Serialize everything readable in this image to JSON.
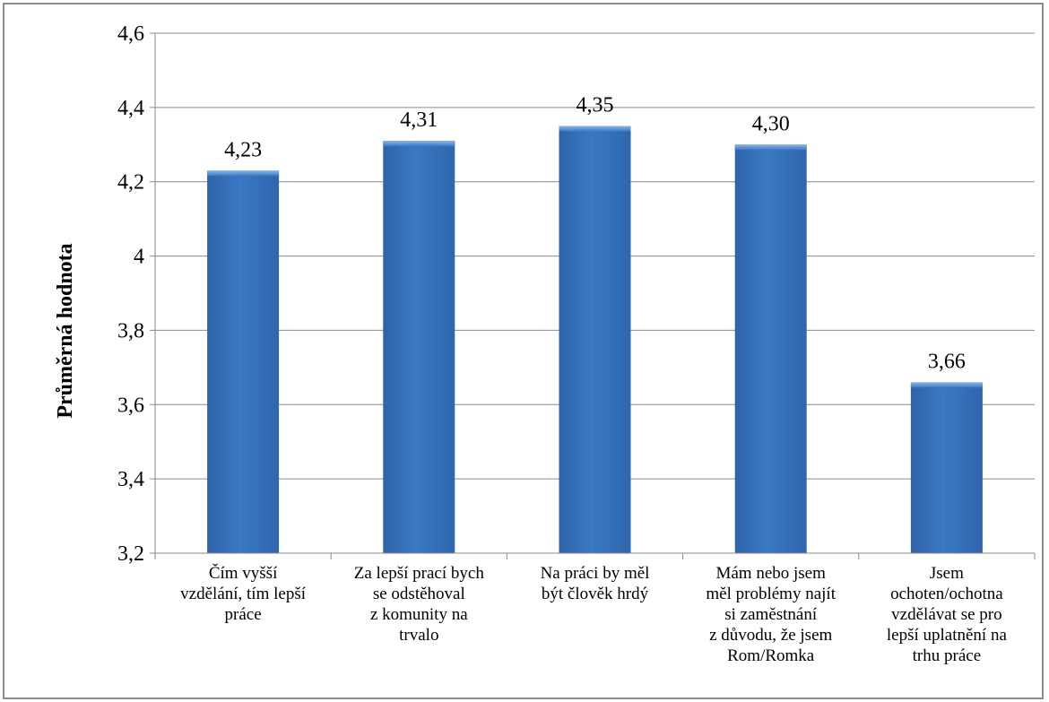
{
  "chart_data": {
    "type": "bar",
    "title": "",
    "xlabel": "",
    "ylabel": "Průměrná hodnota",
    "ylim": [
      3.2,
      4.6
    ],
    "yticks": [
      3.2,
      3.4,
      3.6,
      3.8,
      4,
      4.2,
      4.4,
      4.6
    ],
    "ytick_labels": [
      "3,2",
      "3,4",
      "3,6",
      "3,8",
      "4",
      "4,2",
      "4,4",
      "4,6"
    ],
    "grid": true,
    "legend": "none",
    "bar_color": "#3a78c4",
    "categories": [
      [
        "Čím vyšší",
        "vzdělání, tím lepší",
        "práce"
      ],
      [
        "Za lepší prací bych",
        "se odstěhoval",
        "z komunity na",
        "trvalo"
      ],
      [
        "Na práci by měl",
        "být člověk hrdý"
      ],
      [
        "Mám nebo jsem",
        "měl problémy najít",
        "si zaměstnání",
        "z důvodu, že jsem",
        "Rom/Romka"
      ],
      [
        "Jsem",
        "ochoten/ochotna",
        "vzdělávat se pro",
        "lepší uplatnění na",
        "trhu práce"
      ]
    ],
    "values": [
      4.23,
      4.31,
      4.35,
      4.3,
      3.66
    ],
    "data_labels": [
      "4,23",
      "4,31",
      "4,35",
      "4,30",
      "3,66"
    ]
  }
}
